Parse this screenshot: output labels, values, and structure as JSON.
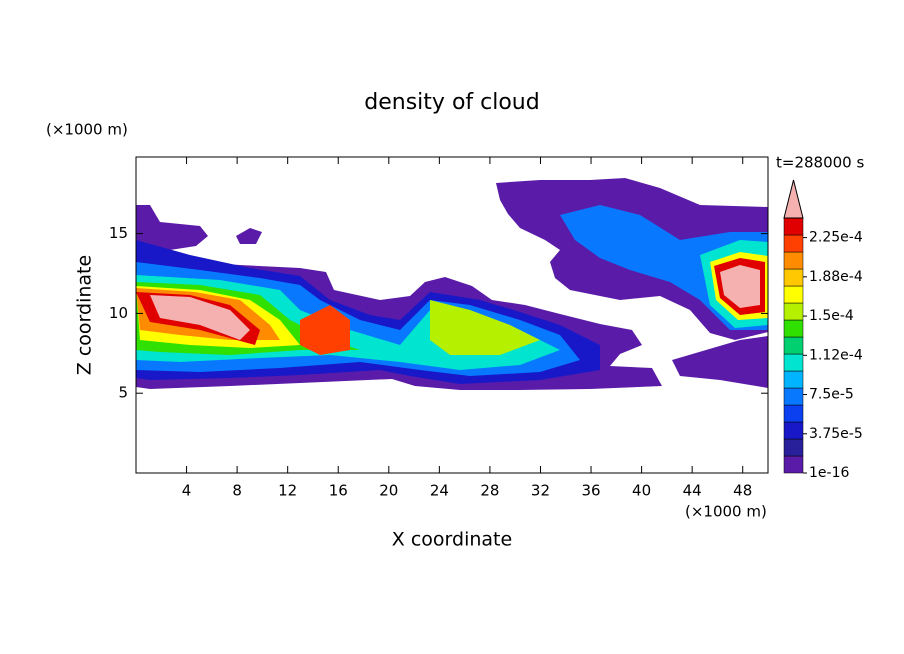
{
  "chart_data": {
    "type": "contour",
    "title": "density of cloud",
    "x_label": "X coordinate",
    "y_label": "Z coordinate",
    "x_unit": "(×1000 m)",
    "y_unit": "(×1000 m)",
    "time_label": "t=288000 s",
    "xlim": [
      0,
      50
    ],
    "ylim": [
      0,
      19.8
    ],
    "xticks": [
      4,
      8,
      12,
      16,
      20,
      24,
      28,
      32,
      36,
      40,
      44,
      48
    ],
    "yticks": [
      5,
      10,
      15
    ],
    "colorbar": {
      "lim": [
        0,
        0.00024375
      ],
      "colors": [
        "#5a1ca8",
        "#28209a",
        "#1818c8",
        "#0a40f0",
        "#0878ff",
        "#00b4ff",
        "#00e4d0",
        "#00d070",
        "#30e000",
        "#b4f000",
        "#ffff00",
        "#ffc800",
        "#ff8c00",
        "#ff4000",
        "#e00000"
      ],
      "over_color": "#f5b0b0",
      "ticks": [
        {
          "value": 1e-16,
          "label": "1e-16"
        },
        {
          "value": 3.75e-05,
          "label": "3.75e-5"
        },
        {
          "value": 7.5e-05,
          "label": "7.5e-5"
        },
        {
          "value": 0.0001125,
          "label": "1.12e-4"
        },
        {
          "value": 0.00015,
          "label": "1.5e-4"
        },
        {
          "value": 0.0001875,
          "label": "1.88e-4"
        },
        {
          "value": 0.000225,
          "label": "2.25e-4"
        }
      ]
    }
  }
}
